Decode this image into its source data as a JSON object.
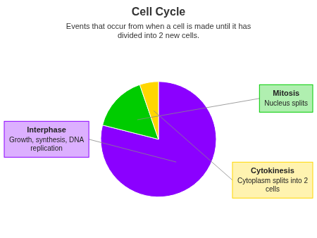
{
  "chart_data": {
    "type": "pie",
    "title": "Cell Cycle",
    "subtitle": "Events that occur from when a cell is made until it has\ndivided into 2 new cells.",
    "categories": [
      "Interphase",
      "Mitosis",
      "Cytokinesis"
    ],
    "values": [
      75,
      15,
      5
    ],
    "colors": [
      "#8B00FF",
      "#00CC00",
      "#FFD700"
    ],
    "annotations": [
      "Growth, synthesis, DNA\nreplication",
      "Nucleus splits",
      "Cytoplasm splits into 2\ncells"
    ]
  }
}
